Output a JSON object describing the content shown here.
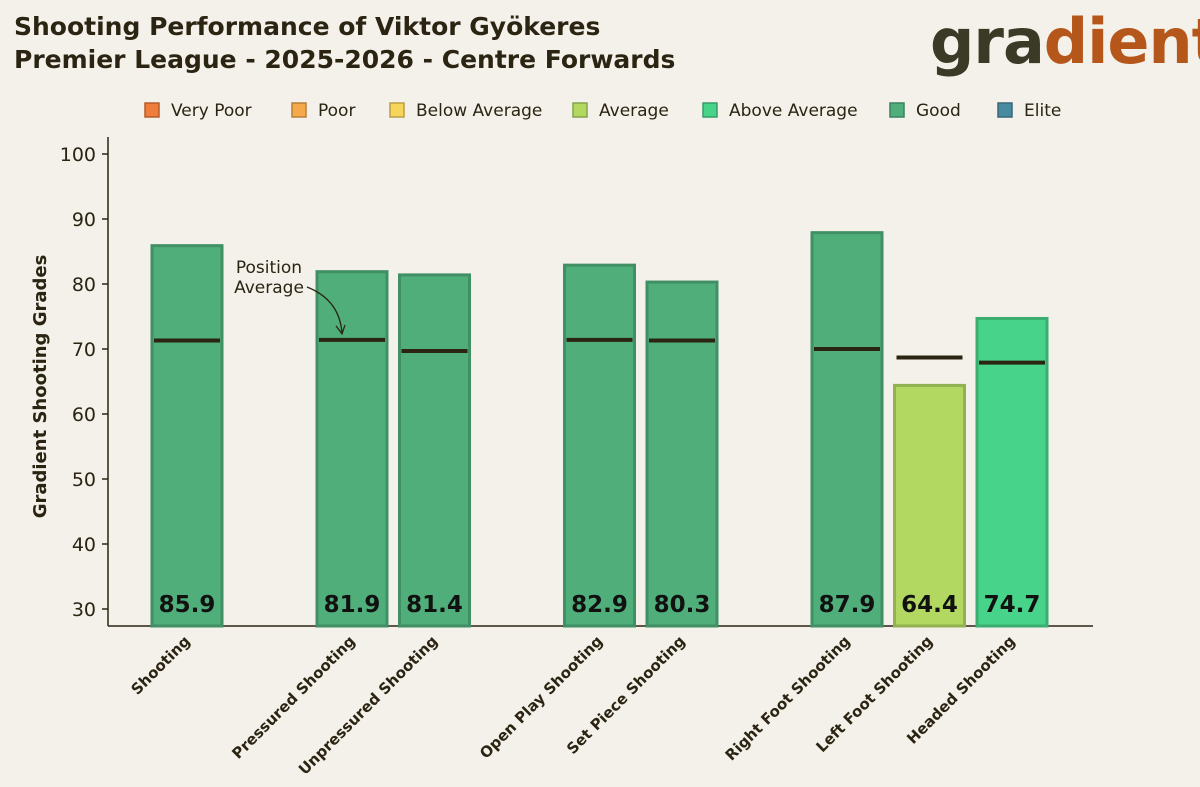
{
  "header": {
    "title_line1": "Shooting Performance of Viktor Gyökeres",
    "title_line2": "Premier League - 2025-2026 - Centre Forwards",
    "logo_text_dark": "gra",
    "logo_text_accent": "dient",
    "logo_full": "gradient"
  },
  "colors": {
    "background": "#f3f1ea",
    "text": "#2b2412",
    "very_poor": "#f07c3c",
    "poor": "#f5a94a",
    "below_average": "#f7d55a",
    "average": "#b2d862",
    "above_average": "#48d38a",
    "good": "#4fae7a",
    "elite": "#4a8aa0"
  },
  "chart_data": {
    "type": "bar",
    "title": "Shooting Performance of Viktor Gyökeres",
    "subtitle": "Premier League - 2025-2026 - Centre Forwards",
    "ylabel": "Gradient Shooting Grades",
    "xlabel": "",
    "ylim": [
      30,
      100
    ],
    "yticks": [
      30,
      40,
      50,
      60,
      70,
      80,
      90,
      100
    ],
    "legend": [
      {
        "label": "Very Poor",
        "key": "very_poor"
      },
      {
        "label": "Poor",
        "key": "poor"
      },
      {
        "label": "Below Average",
        "key": "below_average"
      },
      {
        "label": "Average",
        "key": "average"
      },
      {
        "label": "Above Average",
        "key": "above_average"
      },
      {
        "label": "Good",
        "key": "good"
      },
      {
        "label": "Elite",
        "key": "elite"
      }
    ],
    "legend_position": "top",
    "bars": [
      {
        "category": "Shooting",
        "value": 85.9,
        "label": "85.9",
        "position_average": 71.3,
        "rating": "good",
        "slot": 0
      },
      {
        "category": "Pressured Shooting",
        "value": 81.9,
        "label": "81.9",
        "position_average": 71.4,
        "rating": "good",
        "slot": 2
      },
      {
        "category": "Unpressured Shooting",
        "value": 81.4,
        "label": "81.4",
        "position_average": 69.7,
        "rating": "good",
        "slot": 3
      },
      {
        "category": "Open Play Shooting",
        "value": 82.9,
        "label": "82.9",
        "position_average": 71.4,
        "rating": "good",
        "slot": 5
      },
      {
        "category": "Set Piece Shooting",
        "value": 80.3,
        "label": "80.3",
        "position_average": 71.3,
        "rating": "good",
        "slot": 6
      },
      {
        "category": "Right Foot Shooting",
        "value": 87.9,
        "label": "87.9",
        "position_average": 70.0,
        "rating": "good",
        "slot": 8
      },
      {
        "category": "Left Foot Shooting",
        "value": 64.4,
        "label": "64.4",
        "position_average": 68.7,
        "rating": "average",
        "slot": 9
      },
      {
        "category": "Headed Shooting",
        "value": 74.7,
        "label": "74.7",
        "position_average": 67.9,
        "rating": "above_average",
        "slot": 10
      }
    ],
    "annotation": {
      "line1": "Position",
      "line2": "Average",
      "target_category": "Pressured Shooting"
    }
  }
}
